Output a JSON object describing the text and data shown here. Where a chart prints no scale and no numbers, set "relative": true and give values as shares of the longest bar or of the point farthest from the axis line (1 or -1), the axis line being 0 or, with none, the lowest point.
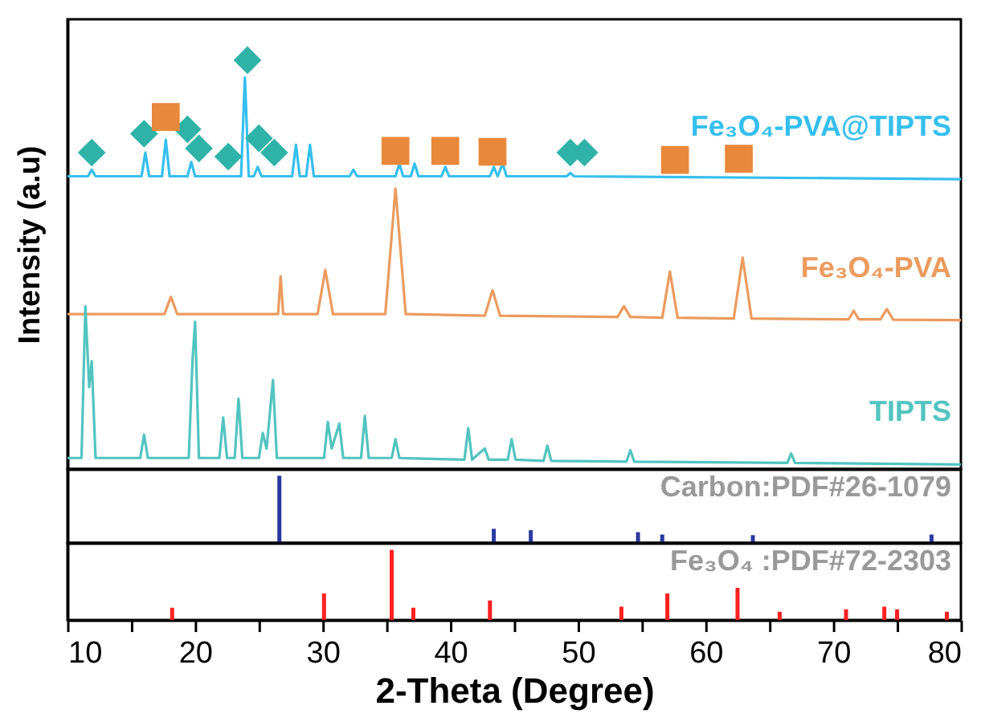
{
  "chart_data": [
    {
      "type": "line",
      "relative": true,
      "ylabel": "Intensity (a.u)",
      "xlim": [
        10,
        80
      ],
      "tick_labels": false,
      "grid": false,
      "marker": "none",
      "line_style": "solid",
      "series": [
        {
          "name": "Fe₃O₄-PVA@TIPTS",
          "color": "#35bfee",
          "x": [
            10,
            11.6,
            11.9,
            12.2,
            15.8,
            16.1,
            16.4,
            17.4,
            17.7,
            18.0,
            19.4,
            19.7,
            20.0,
            23.6,
            23.9,
            24.2,
            24.6,
            24.9,
            25.2,
            27.6,
            27.9,
            28.2,
            28.7,
            29.0,
            29.3,
            32.1,
            32.4,
            32.7,
            35.7,
            36.0,
            36.3,
            36.9,
            37.2,
            37.5,
            39.3,
            39.6,
            39.9,
            43.1,
            43.4,
            43.7,
            44.1,
            44.4,
            49.1,
            49.4,
            49.7,
            80
          ],
          "values": [
            0.716,
            0.716,
            0.732,
            0.716,
            0.716,
            0.774,
            0.716,
            0.716,
            0.805,
            0.716,
            0.716,
            0.751,
            0.716,
            0.716,
            0.958,
            0.716,
            0.716,
            0.739,
            0.716,
            0.716,
            0.793,
            0.716,
            0.716,
            0.793,
            0.716,
            0.716,
            0.732,
            0.716,
            0.716,
            0.747,
            0.716,
            0.716,
            0.747,
            0.716,
            0.716,
            0.739,
            0.716,
            0.716,
            0.739,
            0.716,
            0.747,
            0.716,
            0.716,
            0.724,
            0.716,
            0.709
          ]
        },
        {
          "name": "Fe₃O₄-PVA",
          "color": "#eb9b5e",
          "x": [
            10,
            17.6,
            18.1,
            18.6,
            26.5,
            26.7,
            26.9,
            29.6,
            30.2,
            30.8,
            34.9,
            35.7,
            36.5,
            42.7,
            43.3,
            43.9,
            53.1,
            53.6,
            54.1,
            56.6,
            57.2,
            57.8,
            62.2,
            62.9,
            63.6,
            71.2,
            71.6,
            72.0,
            73.7,
            74.2,
            74.7,
            80
          ],
          "values": [
            0.379,
            0.379,
            0.421,
            0.379,
            0.379,
            0.471,
            0.379,
            0.379,
            0.487,
            0.379,
            0.379,
            0.686,
            0.379,
            0.375,
            0.437,
            0.375,
            0.372,
            0.398,
            0.372,
            0.37,
            0.483,
            0.37,
            0.368,
            0.517,
            0.368,
            0.366,
            0.387,
            0.366,
            0.366,
            0.391,
            0.365,
            0.364
          ]
        },
        {
          "name": "TIPTS",
          "color": "#52c4c0",
          "x": [
            10,
            11.1,
            11.4,
            11.7,
            11.9,
            12.2,
            15.7,
            16.0,
            16.3,
            19.5,
            19.8,
            20.0,
            20.3,
            21.9,
            22.2,
            22.5,
            23.1,
            23.4,
            23.7,
            25.0,
            25.3,
            25.6,
            26.1,
            26.4,
            30.1,
            30.4,
            30.7,
            31.3,
            31.6,
            33.0,
            33.3,
            33.6,
            35.4,
            35.7,
            36.0,
            41.1,
            41.4,
            41.7,
            42.7,
            43.0,
            44.5,
            44.8,
            45.1,
            47.3,
            47.6,
            47.9,
            53.8,
            54.1,
            54.4,
            66.4,
            66.7,
            67.0,
            80
          ],
          "values": [
            0.027,
            0.027,
            0.398,
            0.2,
            0.264,
            0.027,
            0.027,
            0.084,
            0.027,
            0.027,
            0.268,
            0.36,
            0.027,
            0.027,
            0.126,
            0.027,
            0.027,
            0.172,
            0.027,
            0.027,
            0.088,
            0.05,
            0.218,
            0.027,
            0.027,
            0.115,
            0.05,
            0.111,
            0.027,
            0.027,
            0.13,
            0.027,
            0.027,
            0.073,
            0.027,
            0.023,
            0.1,
            0.023,
            0.05,
            0.023,
            0.023,
            0.073,
            0.023,
            0.02,
            0.057,
            0.02,
            0.018,
            0.046,
            0.018,
            0.015,
            0.038,
            0.015,
            0.011
          ]
        },
        {
          "type": "scatter",
          "marker": "diamond",
          "color": "#2fb3a8",
          "x": [
            11.9,
            16.0,
            19.4,
            20.3,
            22.6,
            24.1,
            25.0,
            26.2,
            49.4,
            50.5
          ],
          "values": [
            0.774,
            0.82,
            0.831,
            0.784,
            0.764,
            1.0,
            0.809,
            0.774,
            0.774,
            0.774
          ]
        },
        {
          "type": "scatter",
          "marker": "square",
          "color": "#e8883a",
          "x": [
            17.7,
            35.7,
            39.6,
            43.3,
            57.6,
            62.6
          ],
          "values": [
            0.861,
            0.778,
            0.778,
            0.776,
            0.756,
            0.759
          ]
        }
      ]
    },
    {
      "type": "bar",
      "relative": true,
      "xlim": [
        10,
        80
      ],
      "tick_labels": false,
      "grid": false,
      "series": [
        {
          "name": "Carbon:PDF#26-1079",
          "color": "#2b3aa0",
          "x": [
            26.6,
            43.4,
            46.3,
            54.7,
            56.6,
            63.7,
            77.7
          ],
          "values": [
            1,
            0.21,
            0.19,
            0.16,
            0.125,
            0.116,
            0.125
          ]
        }
      ]
    },
    {
      "type": "bar",
      "relative": true,
      "xlim": [
        10,
        80
      ],
      "xlabel": "2-Theta (Degree)",
      "tick_labels": "x",
      "grid": false,
      "xticks": [
        10,
        {
          "value": 15,
          "label": null
        },
        20,
        {
          "value": 25,
          "label": null
        },
        30,
        {
          "value": 35,
          "label": null
        },
        40,
        {
          "value": 45,
          "label": null
        },
        50,
        {
          "value": 55,
          "label": null
        },
        60,
        {
          "value": 65,
          "label": null
        },
        70,
        {
          "value": 75,
          "label": null
        },
        80
      ],
      "series": [
        {
          "name": "Fe₃O₄ :PDF#72-2303",
          "color": "#ff2020",
          "x": [
            18.2,
            30.1,
            35.4,
            37.1,
            43.1,
            53.4,
            57.0,
            62.5,
            65.8,
            71.0,
            74.0,
            75.0,
            78.9
          ],
          "values": [
            0.175,
            0.378,
            1,
            0.175,
            0.279,
            0.19,
            0.378,
            0.459,
            0.118,
            0.153,
            0.19,
            0.153,
            0.118
          ]
        }
      ]
    }
  ]
}
